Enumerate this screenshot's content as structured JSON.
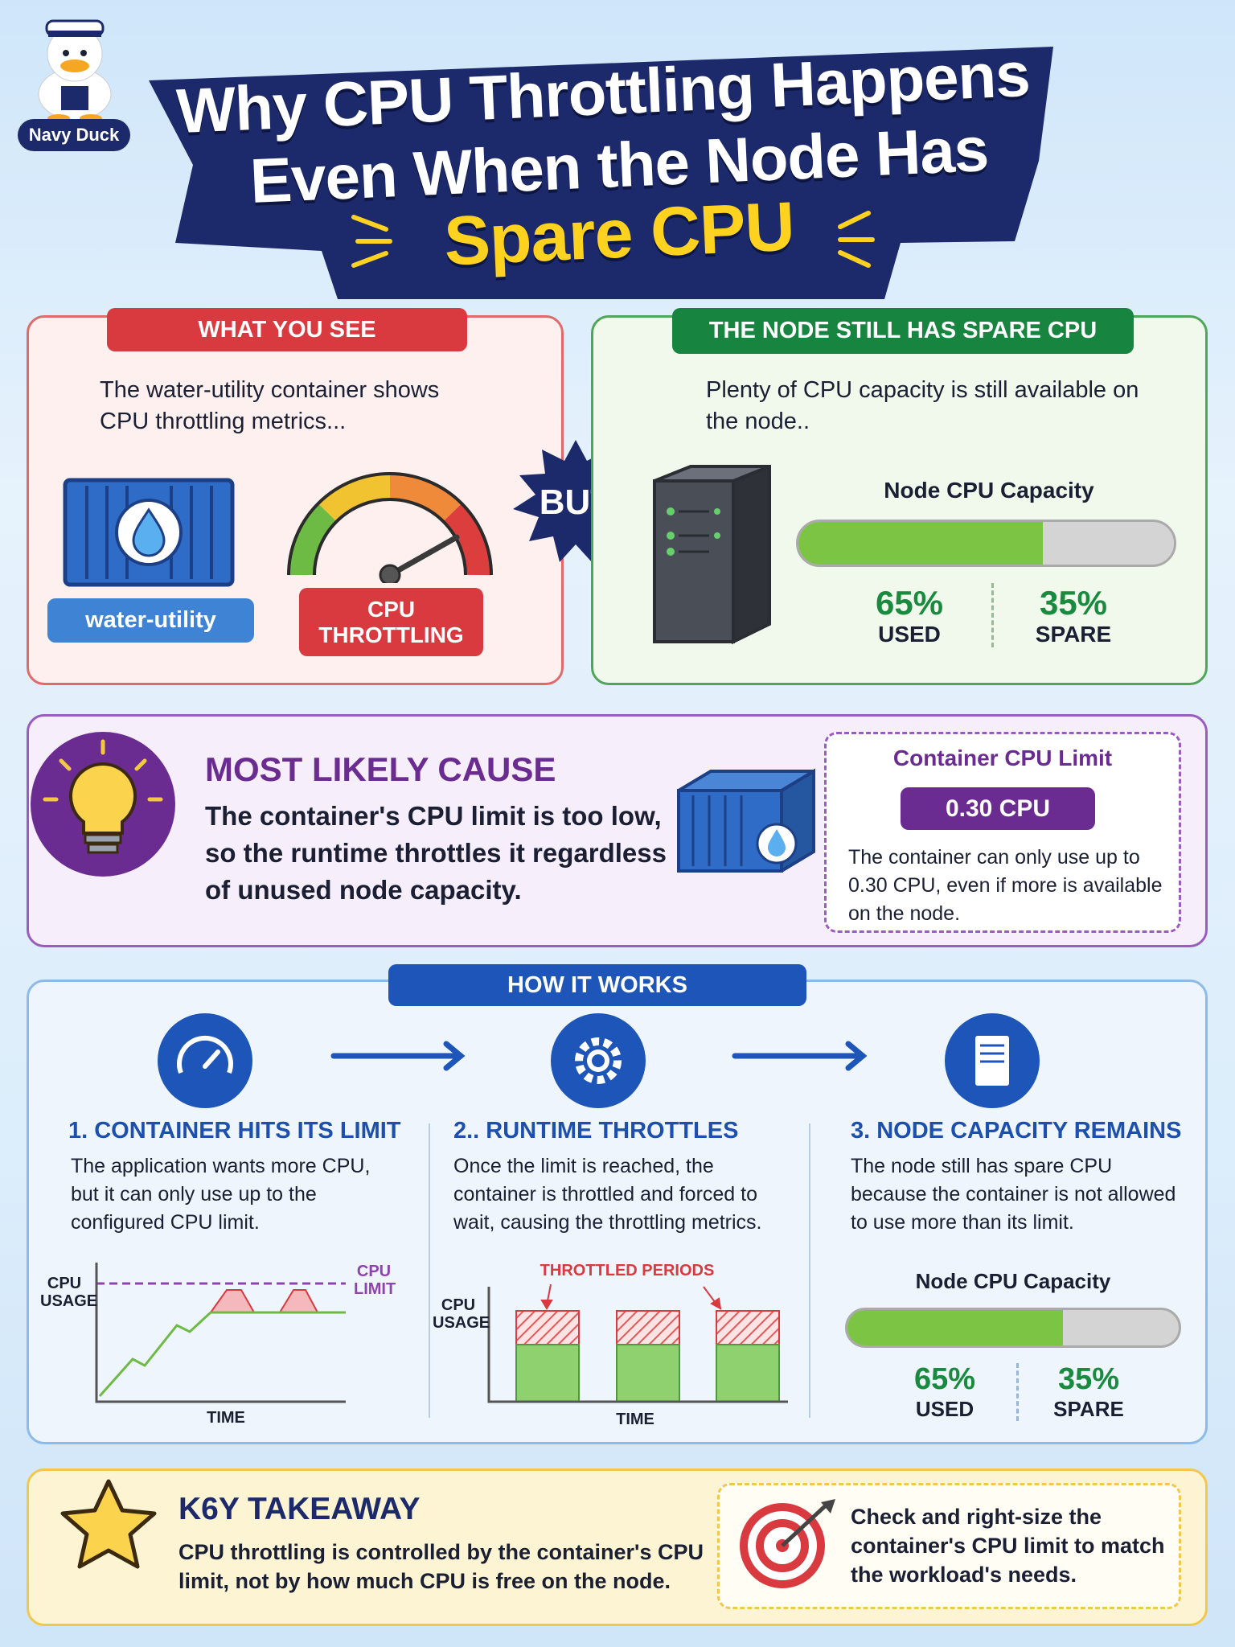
{
  "brand": "Navy Duck",
  "title": {
    "line1": "Why CPU Throttling Happens",
    "line2": "Even When the Node Has",
    "line3": "Spare CPU"
  },
  "what_you_see": {
    "heading": "WHAT YOU SEE",
    "text": "The water-utility container shows CPU throttling metrics...",
    "container_label": "water-utility",
    "gauge_label": "CPU THROTTLING"
  },
  "but": "BUT",
  "node_spare": {
    "heading": "THE NODE STILL HAS SPARE CPU",
    "text": "Plenty of CPU capacity is still available on the node..",
    "capacity_title": "Node CPU Capacity",
    "used": {
      "value": 65,
      "label": "65%"
    },
    "used_caption": "USED",
    "spare": {
      "value": 35,
      "label": "35%"
    },
    "spare_caption": "SPARE"
  },
  "cause": {
    "heading": "MOST LIKELY CAUSE",
    "text": "The container's CPU limit is too low, so the runtime throttles it regardless of unused node capacity.",
    "limit_title": "Container CPU Limit",
    "limit_value": "0.30 CPU",
    "limit_text": "The container can only use up to 0.30 CPU, even if more is available on the node."
  },
  "how": {
    "heading": "HOW IT WORKS",
    "steps": [
      {
        "title": "1. CONTAINER HITS ITS LIMIT",
        "text": "The application wants more CPU, but it can only use up to the configured CPU limit."
      },
      {
        "title": "2.. RUNTIME THROTTLES",
        "text": "Once the limit is reached, the container is throttled and forced to wait, causing the throttling metrics."
      },
      {
        "title": "3. NODE CAPACITY REMAINS",
        "text": "The node still has spare CPU because the container is not allowed to use more than its limit."
      }
    ],
    "y_label": "CPU USAGE",
    "x_label": "TIME",
    "limit_label": "CPU LIMIT",
    "throttled_label": "THROTTLED PERIODS"
  },
  "takeaway": {
    "heading": "K6Y TAKEAWAY",
    "text": "CPU throttling is controlled by the container's CPU limit, not by how much CPU is free on the node.",
    "action": "Check and right-size the container's CPU limit to match the workload's needs."
  }
}
